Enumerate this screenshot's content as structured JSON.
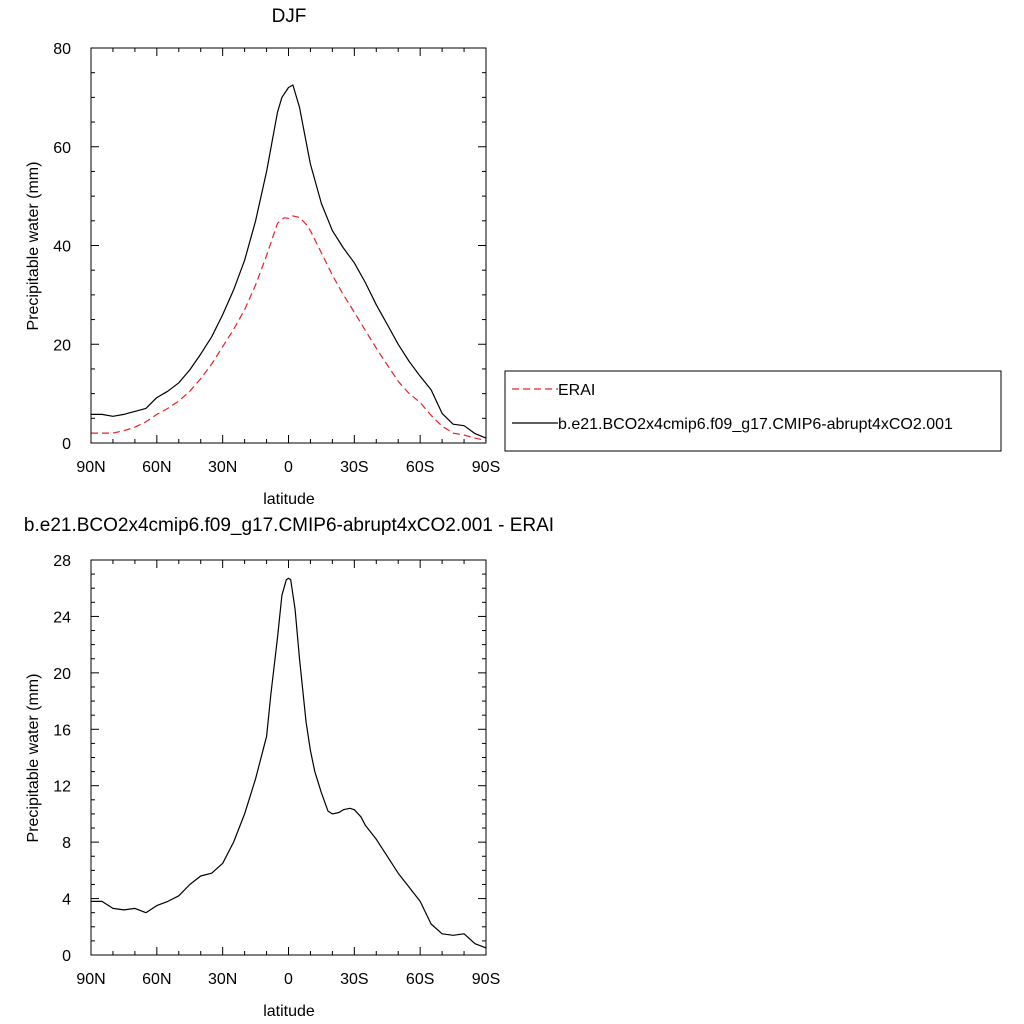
{
  "chart_data": [
    {
      "type": "line",
      "title": "DJF",
      "xlabel": "latitude",
      "ylabel": "Precipitable water (mm)",
      "xlim": [
        90,
        -90
      ],
      "ylim": [
        0,
        80
      ],
      "x_ticks": [
        90,
        60,
        30,
        0,
        -30,
        -60,
        -90
      ],
      "x_tick_labels": [
        "90N",
        "60N",
        "30N",
        "0",
        "30S",
        "60S",
        "90S"
      ],
      "y_ticks": [
        0,
        20,
        40,
        60,
        80
      ],
      "y_tick_labels": [
        "0",
        "20",
        "40",
        "60",
        "80"
      ],
      "legend": "right",
      "series": [
        {
          "name": "ERAI",
          "color": "#e8202a",
          "dash": "dashed",
          "x": [
            90,
            80,
            75,
            70,
            65,
            60,
            55,
            50,
            45,
            40,
            35,
            30,
            25,
            20,
            15,
            10,
            5,
            2,
            0,
            -2,
            -5,
            -8,
            -10,
            -15,
            -20,
            -25,
            -30,
            -35,
            -40,
            -45,
            -50,
            -55,
            -60,
            -65,
            -70,
            -75,
            -80,
            -85,
            -90
          ],
          "y": [
            2.0,
            2.0,
            2.5,
            3.2,
            4.3,
            5.8,
            7.0,
            8.5,
            10.5,
            13.0,
            16.0,
            19.5,
            23.0,
            27.0,
            32.0,
            38.0,
            44.5,
            45.6,
            45.5,
            46.0,
            45.7,
            44.3,
            43.0,
            38.5,
            34.0,
            30.0,
            26.5,
            22.8,
            19.2,
            15.8,
            12.5,
            10.0,
            8.2,
            5.6,
            3.4,
            2.0,
            1.6,
            1.0,
            0.5
          ]
        },
        {
          "name": "b.e21.BCO2x4cmip6.f09_g17.CMIP6-abrupt4xCO2.001",
          "color": "#000000",
          "dash": "solid",
          "x": [
            90,
            85,
            80,
            75,
            70,
            65,
            60,
            55,
            50,
            45,
            40,
            35,
            30,
            25,
            20,
            15,
            10,
            5,
            3,
            0,
            -2,
            -5,
            -8,
            -10,
            -15,
            -20,
            -25,
            -30,
            -35,
            -40,
            -45,
            -50,
            -55,
            -60,
            -65,
            -70,
            -75,
            -80,
            -85,
            -90
          ],
          "y": [
            5.8,
            5.8,
            5.4,
            5.8,
            6.4,
            7.0,
            9.2,
            10.5,
            12.2,
            14.8,
            18.0,
            21.5,
            26.0,
            31.0,
            37.0,
            45.0,
            55.0,
            67.0,
            70.0,
            72.0,
            72.5,
            68.0,
            61.0,
            56.5,
            48.5,
            43.0,
            39.5,
            36.5,
            32.5,
            28.0,
            24.0,
            20.0,
            16.5,
            13.5,
            10.8,
            6.0,
            3.8,
            3.5,
            1.9,
            1.0
          ]
        }
      ]
    },
    {
      "type": "line",
      "title": "b.e21.BCO2x4cmip6.f09_g17.CMIP6-abrupt4xCO2.001 - ERAI",
      "xlabel": "latitude",
      "ylabel": "Precipitable water (mm)",
      "xlim": [
        90,
        -90
      ],
      "ylim": [
        0,
        28
      ],
      "x_ticks": [
        90,
        60,
        30,
        0,
        -30,
        -60,
        -90
      ],
      "x_tick_labels": [
        "90N",
        "60N",
        "30N",
        "0",
        "30S",
        "60S",
        "90S"
      ],
      "y_ticks": [
        0,
        4,
        8,
        12,
        16,
        20,
        24,
        28
      ],
      "y_tick_labels": [
        "0",
        "4",
        "8",
        "12",
        "16",
        "20",
        "24",
        "28"
      ],
      "series": [
        {
          "color": "#000000",
          "dash": "solid",
          "x": [
            90,
            85,
            80,
            75,
            70,
            65,
            60,
            55,
            50,
            45,
            40,
            35,
            30,
            25,
            20,
            15,
            10,
            8,
            5,
            3,
            1,
            0,
            -1,
            -3,
            -5,
            -8,
            -10,
            -12,
            -15,
            -18,
            -20,
            -23,
            -25,
            -28,
            -30,
            -33,
            -35,
            -40,
            -45,
            -50,
            -55,
            -60,
            -65,
            -70,
            -75,
            -80,
            -85,
            -90
          ],
          "y": [
            3.8,
            3.8,
            3.3,
            3.2,
            3.3,
            3.0,
            3.5,
            3.8,
            4.2,
            5.0,
            5.6,
            5.8,
            6.5,
            8.0,
            10.0,
            12.5,
            15.5,
            18.5,
            22.5,
            25.5,
            26.6,
            26.7,
            26.6,
            24.5,
            21.0,
            16.5,
            14.5,
            13.0,
            11.5,
            10.2,
            10.0,
            10.1,
            10.3,
            10.4,
            10.3,
            9.8,
            9.2,
            8.2,
            7.0,
            5.8,
            4.8,
            3.8,
            2.2,
            1.5,
            1.4,
            1.5,
            0.8,
            0.5
          ]
        }
      ]
    }
  ]
}
